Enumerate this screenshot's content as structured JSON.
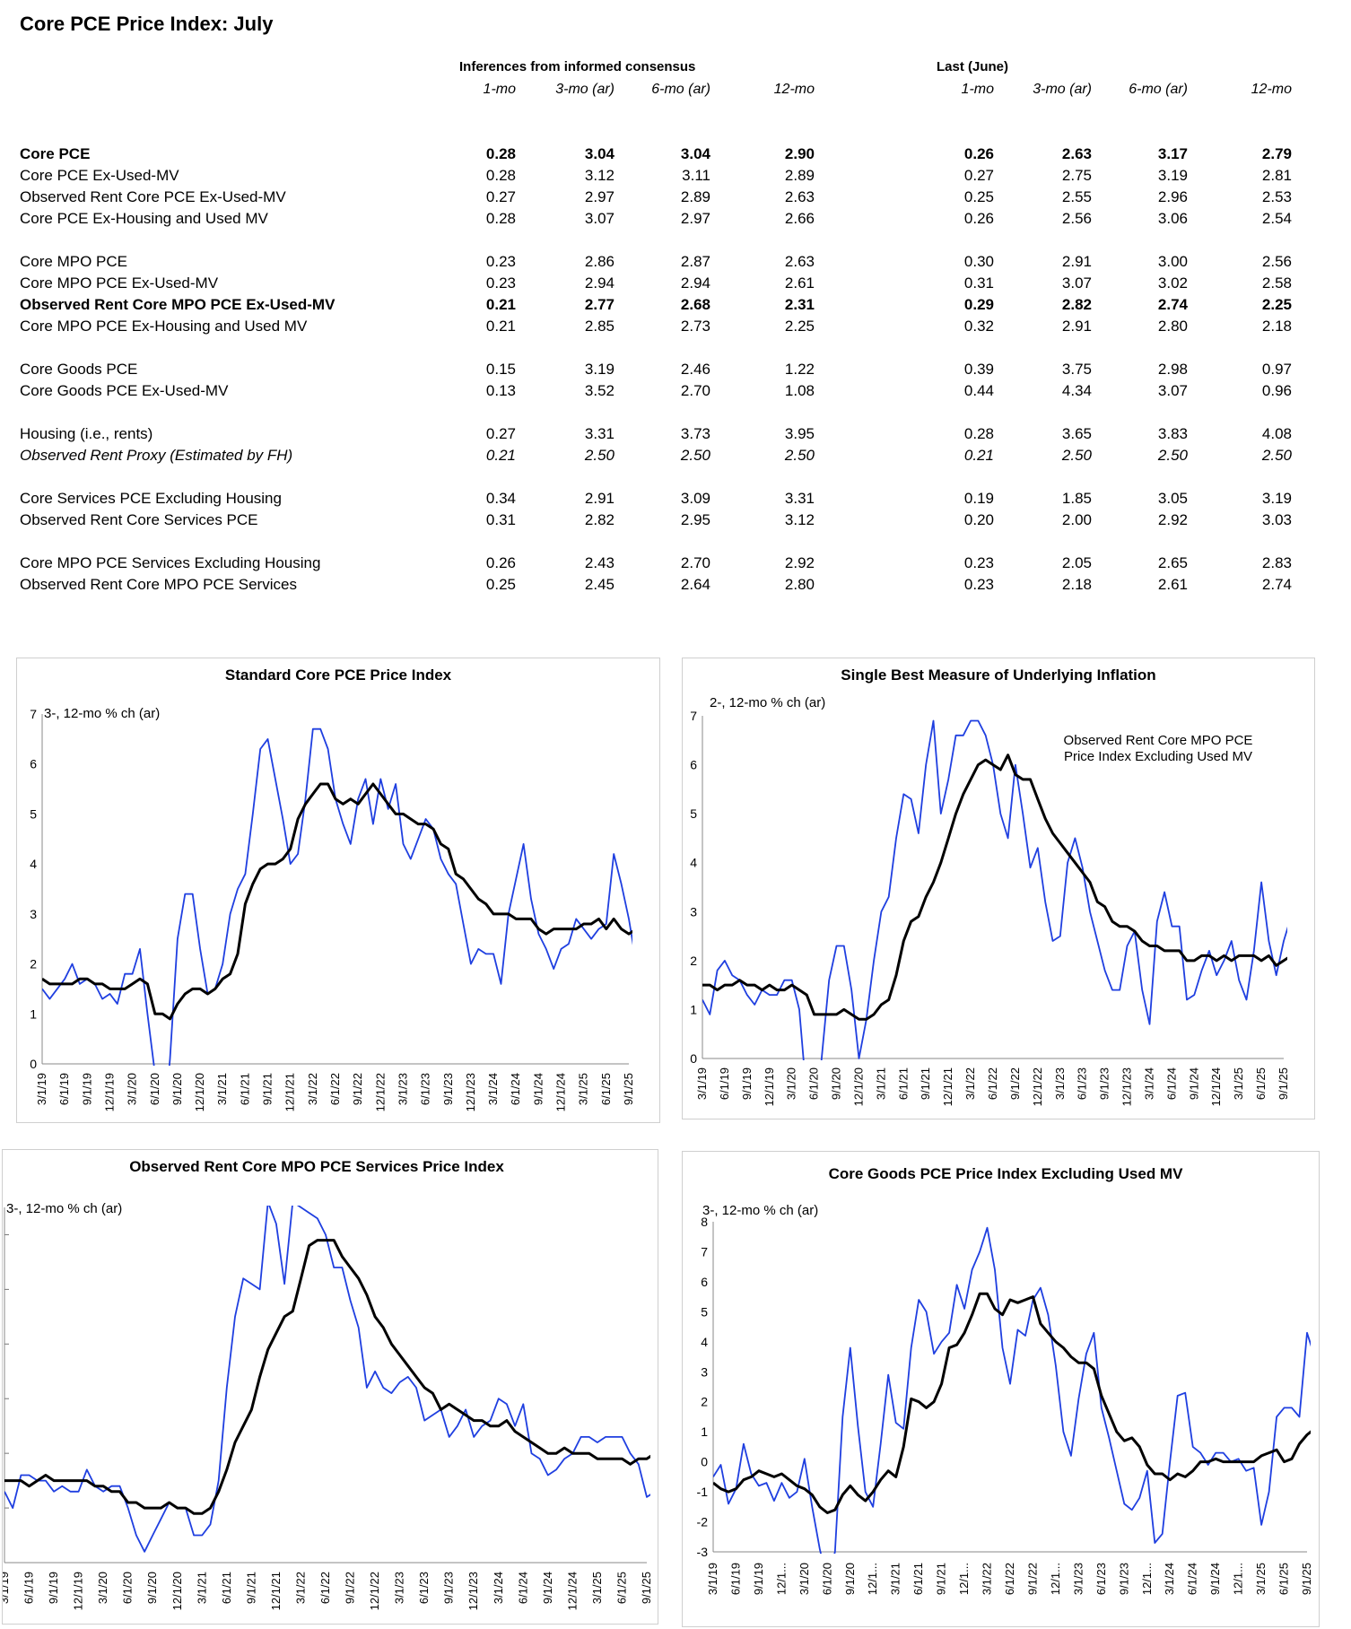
{
  "title": "Core PCE Price Index: July",
  "table": {
    "group1": "Inferences from informed consensus",
    "group2": "Last (June)",
    "col_headers": [
      "1-mo",
      "3-mo (ar)",
      "6-mo (ar)",
      "12-mo",
      "1-mo",
      "3-mo (ar)",
      "6-mo (ar)",
      "12-mo"
    ],
    "rows": [
      {
        "label": "Core PCE",
        "style": "bold",
        "values": [
          "0.28",
          "3.04",
          "3.04",
          "2.90",
          "0.26",
          "2.63",
          "3.17",
          "2.79"
        ]
      },
      {
        "label": "Core PCE  Ex-Used-MV",
        "style": "",
        "values": [
          "0.28",
          "3.12",
          "3.11",
          "2.89",
          "0.27",
          "2.75",
          "3.19",
          "2.81"
        ]
      },
      {
        "label": "Observed Rent Core PCE Ex-Used-MV",
        "style": "",
        "values": [
          "0.27",
          "2.97",
          "2.89",
          "2.63",
          "0.25",
          "2.55",
          "2.96",
          "2.53"
        ]
      },
      {
        "label": "Core PCE Ex-Housing and Used MV",
        "style": "",
        "values": [
          "0.28",
          "3.07",
          "2.97",
          "2.66",
          "0.26",
          "2.56",
          "3.06",
          "2.54"
        ]
      },
      {
        "label": "Core MPO PCE",
        "style": "",
        "values": [
          "0.23",
          "2.86",
          "2.87",
          "2.63",
          "0.30",
          "2.91",
          "3.00",
          "2.56"
        ]
      },
      {
        "label": "Core MPO PCE Ex-Used-MV",
        "style": "",
        "values": [
          "0.23",
          "2.94",
          "2.94",
          "2.61",
          "0.31",
          "3.07",
          "3.02",
          "2.58"
        ]
      },
      {
        "label": "Observed Rent Core MPO PCE Ex-Used-MV",
        "style": "bold",
        "values": [
          "0.21",
          "2.77",
          "2.68",
          "2.31",
          "0.29",
          "2.82",
          "2.74",
          "2.25"
        ]
      },
      {
        "label": "Core MPO PCE Ex-Housing and Used MV",
        "style": "",
        "values": [
          "0.21",
          "2.85",
          "2.73",
          "2.25",
          "0.32",
          "2.91",
          "2.80",
          "2.18"
        ]
      },
      {
        "label": "Core Goods PCE",
        "style": "",
        "values": [
          "0.15",
          "3.19",
          "2.46",
          "1.22",
          "0.39",
          "3.75",
          "2.98",
          "0.97"
        ]
      },
      {
        "label": "Core Goods PCE Ex-Used-MV",
        "style": "",
        "values": [
          "0.13",
          "3.52",
          "2.70",
          "1.08",
          "0.44",
          "4.34",
          "3.07",
          "0.96"
        ]
      },
      {
        "label": "Housing (i.e., rents)",
        "style": "",
        "values": [
          "0.27",
          "3.31",
          "3.73",
          "3.95",
          "0.28",
          "3.65",
          "3.83",
          "4.08"
        ]
      },
      {
        "label": "Observed Rent Proxy (Estimated by FH)",
        "style": "italic",
        "values": [
          "0.21",
          "2.50",
          "2.50",
          "2.50",
          "0.21",
          "2.50",
          "2.50",
          "2.50"
        ]
      },
      {
        "label": "Core Services PCE Excluding Housing",
        "style": "",
        "values": [
          "0.34",
          "2.91",
          "3.09",
          "3.31",
          "0.19",
          "1.85",
          "3.05",
          "3.19"
        ]
      },
      {
        "label": "Observed Rent Core Services PCE",
        "style": "",
        "values": [
          "0.31",
          "2.82",
          "2.95",
          "3.12",
          "0.20",
          "2.00",
          "2.92",
          "3.03"
        ]
      },
      {
        "label": "Core MPO PCE Services Excluding Housing",
        "style": "",
        "values": [
          "0.26",
          "2.43",
          "2.70",
          "2.92",
          "0.23",
          "2.05",
          "2.65",
          "2.83"
        ]
      },
      {
        "label": "Observed Rent Core MPO PCE Services",
        "style": "",
        "values": [
          "0.25",
          "2.45",
          "2.64",
          "2.80",
          "0.23",
          "2.18",
          "2.61",
          "2.74"
        ]
      }
    ]
  },
  "colors": {
    "three_month": "#1f3fe0",
    "twelve_month": "#000000"
  },
  "chart_data": [
    {
      "type": "line",
      "title": "Standard Core PCE Price Index",
      "ylabel": "3-, 12-mo % ch (ar)",
      "annotation": "",
      "ylim": [
        0,
        7
      ],
      "yticks": [
        "0",
        "1",
        "2",
        "3",
        "4",
        "5",
        "6",
        "7"
      ],
      "x_labels": [
        "3/1/19",
        "6/1/19",
        "9/1/19",
        "12/1/19",
        "3/1/20",
        "6/1/20",
        "9/1/20",
        "12/1/20",
        "3/1/21",
        "6/1/21",
        "9/1/21",
        "12/1/21",
        "3/1/22",
        "6/1/22",
        "9/1/22",
        "12/1/22",
        "3/1/23",
        "6/1/23",
        "9/1/23",
        "12/1/23",
        "3/1/24",
        "6/1/24",
        "9/1/24",
        "12/1/24",
        "3/1/25",
        "6/1/25",
        "9/1/25"
      ],
      "x_start": "3/1/19",
      "series": [
        {
          "values": [
            1.5,
            1.3,
            1.5,
            1.7,
            2.0,
            1.6,
            1.7,
            1.6,
            1.3,
            1.4,
            1.2,
            1.8,
            1.8,
            2.3,
            1.0,
            -0.2,
            -1.6,
            0.1,
            2.5,
            3.4,
            3.4,
            2.3,
            1.4,
            1.5,
            2.0,
            3.0,
            3.5,
            3.8,
            5.0,
            6.3,
            6.5,
            5.7,
            4.9,
            4.0,
            4.2,
            5.3,
            6.7,
            6.7,
            6.3,
            5.3,
            4.8,
            4.4,
            5.3,
            5.7,
            4.8,
            5.7,
            5.1,
            5.6,
            4.4,
            4.1,
            4.5,
            4.9,
            4.7,
            4.1,
            3.8,
            3.6,
            2.8,
            2.0,
            2.3,
            2.2,
            2.2,
            1.6,
            3.0,
            3.7,
            4.4,
            3.3,
            2.6,
            2.3,
            1.9,
            2.3,
            2.4,
            2.9,
            2.7,
            2.5,
            2.7,
            2.8,
            4.2,
            3.6,
            2.9,
            2.0,
            2.6,
            3.0
          ]
        },
        {
          "values": [
            1.7,
            1.6,
            1.6,
            1.6,
            1.6,
            1.7,
            1.7,
            1.6,
            1.6,
            1.5,
            1.5,
            1.5,
            1.6,
            1.7,
            1.6,
            1.0,
            1.0,
            0.9,
            1.2,
            1.4,
            1.5,
            1.5,
            1.4,
            1.5,
            1.7,
            1.8,
            2.2,
            3.2,
            3.6,
            3.9,
            4.0,
            4.0,
            4.1,
            4.3,
            4.9,
            5.2,
            5.4,
            5.6,
            5.6,
            5.3,
            5.2,
            5.3,
            5.2,
            5.4,
            5.6,
            5.4,
            5.2,
            5.0,
            5.0,
            4.9,
            4.8,
            4.8,
            4.7,
            4.4,
            4.3,
            3.8,
            3.7,
            3.5,
            3.3,
            3.2,
            3.0,
            3.0,
            3.0,
            2.9,
            2.9,
            2.9,
            2.7,
            2.6,
            2.7,
            2.7,
            2.7,
            2.7,
            2.8,
            2.8,
            2.9,
            2.7,
            2.9,
            2.7,
            2.6,
            2.7,
            2.8,
            2.9
          ]
        }
      ]
    },
    {
      "type": "line",
      "title": "Single Best Measure of Underlying Inflation",
      "ylabel": "2-, 12-mo % ch (ar)",
      "annotation": "Observed Rent Core MPO PCE Price Index Excluding Used MV",
      "ylim": [
        0,
        7
      ],
      "yticks": [
        "0",
        "1",
        "2",
        "3",
        "4",
        "5",
        "6",
        "7"
      ],
      "x_labels": [
        "3/1/19",
        "6/1/19",
        "9/1/19",
        "12/1/19",
        "3/1/20",
        "6/1/20",
        "9/1/20",
        "12/1/20",
        "3/1/21",
        "6/1/21",
        "9/1/21",
        "12/1/21",
        "3/1/22",
        "6/1/22",
        "9/1/22",
        "12/1/22",
        "3/1/23",
        "6/1/23",
        "9/1/23",
        "12/1/23",
        "3/1/24",
        "6/1/24",
        "9/1/24",
        "12/1/24",
        "3/1/25",
        "6/1/25",
        "9/1/25"
      ],
      "x_start": "3/1/19",
      "series": [
        {
          "values": [
            1.2,
            0.9,
            1.8,
            2.0,
            1.7,
            1.6,
            1.3,
            1.1,
            1.4,
            1.3,
            1.3,
            1.6,
            1.6,
            1.0,
            -0.8,
            -1.5,
            0.0,
            1.6,
            2.3,
            2.3,
            1.4,
            0.0,
            0.8,
            2.0,
            3.0,
            3.3,
            4.5,
            5.4,
            5.3,
            4.6,
            6.0,
            6.9,
            5.0,
            5.7,
            6.6,
            6.6,
            6.9,
            6.9,
            6.6,
            6.0,
            5.0,
            4.5,
            6.0,
            5.0,
            3.9,
            4.3,
            3.2,
            2.4,
            2.5,
            4.0,
            4.5,
            3.9,
            3.0,
            2.4,
            1.8,
            1.4,
            1.4,
            2.3,
            2.6,
            1.4,
            0.7,
            2.8,
            3.4,
            2.7,
            2.7,
            1.2,
            1.3,
            1.8,
            2.2,
            1.7,
            2.0,
            2.4,
            1.6,
            1.2,
            2.2,
            3.6,
            2.4,
            1.7,
            2.4,
            2.9,
            3.0
          ]
        },
        {
          "values": [
            1.5,
            1.5,
            1.4,
            1.5,
            1.5,
            1.6,
            1.5,
            1.5,
            1.4,
            1.5,
            1.4,
            1.4,
            1.5,
            1.4,
            1.3,
            0.9,
            0.9,
            0.9,
            0.9,
            1.0,
            0.9,
            0.8,
            0.8,
            0.9,
            1.1,
            1.2,
            1.7,
            2.4,
            2.8,
            2.9,
            3.3,
            3.6,
            4.0,
            4.5,
            5.0,
            5.4,
            5.7,
            6.0,
            6.1,
            6.0,
            5.9,
            6.2,
            5.8,
            5.7,
            5.7,
            5.3,
            4.9,
            4.6,
            4.4,
            4.2,
            4.0,
            3.8,
            3.6,
            3.2,
            3.1,
            2.8,
            2.7,
            2.7,
            2.6,
            2.4,
            2.3,
            2.3,
            2.2,
            2.2,
            2.2,
            2.0,
            2.0,
            2.1,
            2.1,
            2.0,
            2.1,
            2.0,
            2.1,
            2.1,
            2.1,
            2.0,
            2.1,
            1.9,
            2.0,
            2.1,
            2.2,
            2.3
          ]
        }
      ]
    },
    {
      "type": "line",
      "title": "Observed Rent Core MPO PCE Services Price Index",
      "ylabel": "3-, 12-mo % ch (ar)",
      "annotation": "",
      "ylim": [
        0,
        6.5
      ],
      "yticks": [],
      "x_labels": [
        "3/1/19",
        "6/1/19",
        "9/1/19",
        "12/1/19",
        "3/1/20",
        "6/1/20",
        "9/1/20",
        "12/1/20",
        "3/1/21",
        "6/1/21",
        "9/1/21",
        "12/1/21",
        "3/1/22",
        "6/1/22",
        "9/1/22",
        "12/1/22",
        "3/1/23",
        "6/1/23",
        "9/1/23",
        "12/1/23",
        "3/1/24",
        "6/1/24",
        "9/1/24",
        "12/1/24",
        "3/1/25",
        "6/1/25",
        "9/1/25"
      ],
      "x_start": "3/1/19",
      "series": [
        {
          "values": [
            1.3,
            1.0,
            1.6,
            1.6,
            1.5,
            1.5,
            1.3,
            1.4,
            1.3,
            1.3,
            1.7,
            1.4,
            1.3,
            1.4,
            1.4,
            1.0,
            0.5,
            0.2,
            0.5,
            0.8,
            1.1,
            1.0,
            1.0,
            0.5,
            0.5,
            0.7,
            1.5,
            3.2,
            4.5,
            5.2,
            5.1,
            5.0,
            6.6,
            6.2,
            5.1,
            6.6,
            6.5,
            6.4,
            6.3,
            6.0,
            5.4,
            5.4,
            4.8,
            4.3,
            3.2,
            3.5,
            3.2,
            3.1,
            3.3,
            3.4,
            3.2,
            2.6,
            2.7,
            2.8,
            2.3,
            2.5,
            2.8,
            2.3,
            2.5,
            2.6,
            3.0,
            2.9,
            2.5,
            2.9,
            2.0,
            1.9,
            1.6,
            1.7,
            1.9,
            2.0,
            2.3,
            2.3,
            2.2,
            2.3,
            2.3,
            2.3,
            2.0,
            1.8,
            1.2,
            1.3,
            1.6
          ]
        },
        {
          "values": [
            1.5,
            1.5,
            1.5,
            1.4,
            1.5,
            1.6,
            1.5,
            1.5,
            1.5,
            1.5,
            1.5,
            1.4,
            1.4,
            1.3,
            1.3,
            1.1,
            1.1,
            1.0,
            1.0,
            1.0,
            1.1,
            1.0,
            1.0,
            0.9,
            0.9,
            1.0,
            1.3,
            1.7,
            2.2,
            2.5,
            2.8,
            3.4,
            3.9,
            4.2,
            4.5,
            4.6,
            5.2,
            5.8,
            5.9,
            5.9,
            5.9,
            5.6,
            5.4,
            5.2,
            4.9,
            4.5,
            4.3,
            4.0,
            3.8,
            3.6,
            3.4,
            3.2,
            3.1,
            2.8,
            2.9,
            2.8,
            2.7,
            2.6,
            2.6,
            2.5,
            2.5,
            2.6,
            2.4,
            2.3,
            2.2,
            2.1,
            2.0,
            2.0,
            2.1,
            2.0,
            2.0,
            2.0,
            1.9,
            1.9,
            1.9,
            1.9,
            1.8,
            1.9,
            1.9,
            2.0,
            2.0
          ]
        }
      ]
    },
    {
      "type": "line",
      "title": "Core Goods PCE Price Index Excluding Used MV",
      "ylabel": "3-, 12-mo % ch (ar)",
      "annotation": "",
      "ylim": [
        -3,
        8
      ],
      "yticks": [
        "-3",
        "-2",
        "-1",
        "0",
        "1",
        "2",
        "3",
        "4",
        "5",
        "6",
        "7",
        "8"
      ],
      "x_labels": [
        "3/1/19",
        "6/1/19",
        "9/1/19",
        "12/1...",
        "3/1/20",
        "6/1/20",
        "9/1/20",
        "12/1...",
        "3/1/21",
        "6/1/21",
        "9/1/21",
        "12/1...",
        "3/1/22",
        "6/1/22",
        "9/1/22",
        "12/1...",
        "3/1/23",
        "6/1/23",
        "9/1/23",
        "12/1...",
        "3/1/24",
        "6/1/24",
        "9/1/24",
        "12/1...",
        "3/1/25",
        "6/1/25",
        "9/1/25"
      ],
      "x_start": "3/1/19",
      "series": [
        {
          "values": [
            -0.5,
            -0.1,
            -1.4,
            -0.9,
            0.6,
            -0.4,
            -0.8,
            -0.7,
            -1.3,
            -0.7,
            -1.2,
            -1.0,
            0.1,
            -1.5,
            -2.9,
            -4.0,
            -3.0,
            1.5,
            3.8,
            1.2,
            -1.0,
            -1.5,
            0.6,
            2.9,
            1.3,
            1.1,
            3.8,
            5.4,
            5.0,
            3.6,
            4.0,
            4.3,
            5.9,
            5.1,
            6.4,
            7.0,
            7.8,
            6.4,
            3.8,
            2.6,
            4.4,
            4.2,
            5.4,
            5.8,
            4.9,
            3.2,
            1.0,
            0.2,
            2.1,
            3.6,
            4.3,
            1.8,
            0.8,
            -0.3,
            -1.4,
            -1.6,
            -1.2,
            -0.3,
            -2.7,
            -2.4,
            0.0,
            2.2,
            2.3,
            0.5,
            0.3,
            -0.1,
            0.3,
            0.3,
            0.0,
            0.1,
            -0.3,
            -0.2,
            -2.1,
            -1.0,
            1.5,
            1.8,
            1.8,
            1.5,
            4.3,
            3.5
          ]
        },
        {
          "values": [
            -0.7,
            -0.9,
            -1.0,
            -0.9,
            -0.6,
            -0.5,
            -0.3,
            -0.4,
            -0.5,
            -0.4,
            -0.6,
            -0.8,
            -0.9,
            -1.1,
            -1.5,
            -1.7,
            -1.6,
            -1.1,
            -0.8,
            -1.1,
            -1.3,
            -1.0,
            -0.6,
            -0.3,
            -0.5,
            0.5,
            2.1,
            2.0,
            1.8,
            2.0,
            2.6,
            3.8,
            3.9,
            4.3,
            4.9,
            5.6,
            5.6,
            5.1,
            4.9,
            5.4,
            5.3,
            5.4,
            5.5,
            4.6,
            4.3,
            4.0,
            3.8,
            3.5,
            3.3,
            3.3,
            3.1,
            2.2,
            1.6,
            1.0,
            0.7,
            0.8,
            0.5,
            -0.1,
            -0.4,
            -0.4,
            -0.6,
            -0.4,
            -0.5,
            -0.3,
            0.0,
            0.0,
            0.1,
            0.0,
            0.0,
            0.0,
            0.0,
            0.0,
            0.2,
            0.3,
            0.4,
            0.0,
            0.1,
            0.6,
            0.9,
            1.1
          ]
        }
      ]
    }
  ]
}
